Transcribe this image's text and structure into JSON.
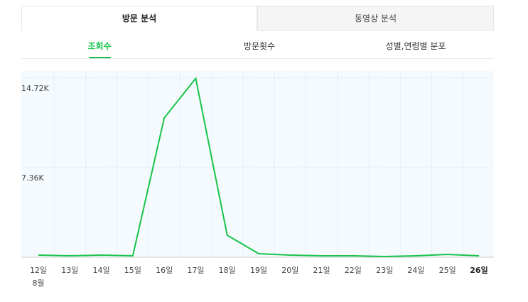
{
  "tabs": [
    {
      "label": "방문 분석",
      "active": true
    },
    {
      "label": "동영상 분석",
      "active": false
    }
  ],
  "subtabs": [
    {
      "label": "조회수",
      "active": true
    },
    {
      "label": "방문횟수",
      "active": false
    },
    {
      "label": "성별,연령별 분포",
      "active": false
    }
  ],
  "chart_data": {
    "type": "line",
    "categories": [
      "12일",
      "13일",
      "14일",
      "15일",
      "16일",
      "17일",
      "18일",
      "19일",
      "20일",
      "21일",
      "22일",
      "23일",
      "24일",
      "25일",
      "26일"
    ],
    "month_label": "8월",
    "values": [
      175,
      120,
      175,
      120,
      11450,
      14700,
      1810,
      290,
      175,
      120,
      120,
      60,
      120,
      230,
      120
    ],
    "color": "#19c34a",
    "ylim": [
      0,
      15300
    ],
    "yticks": [
      {
        "value": 7360,
        "label": "7.36K"
      },
      {
        "value": 14720,
        "label": "14.72K"
      }
    ],
    "grid": true
  }
}
